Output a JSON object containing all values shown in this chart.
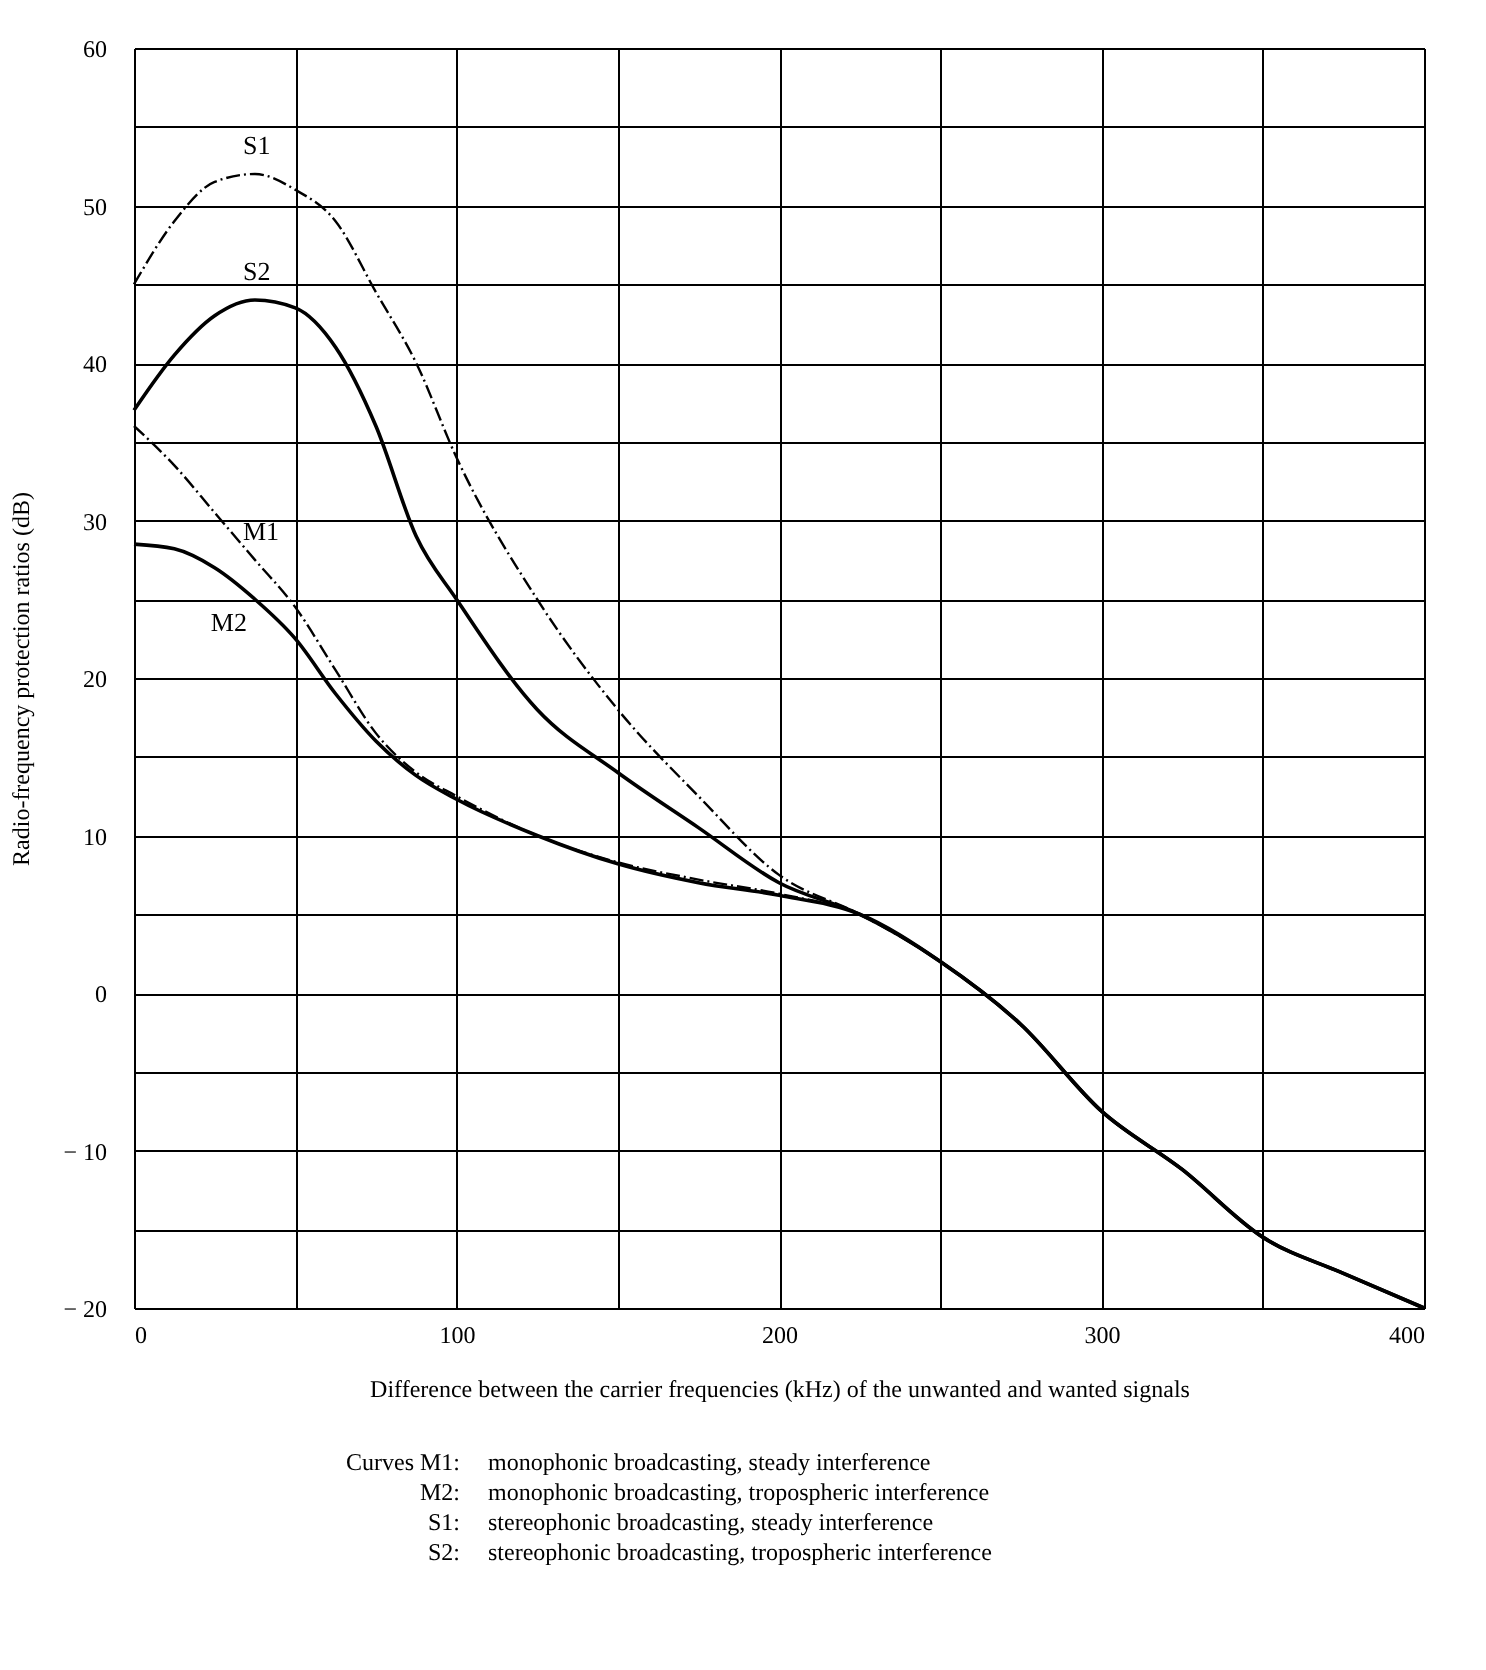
{
  "chart_data": {
    "type": "line",
    "xlabel": "Difference between the carrier frequencies (kHz) of the unwanted and wanted signals",
    "ylabel": "Radio-frequency protection ratios (dB)",
    "x": [
      0,
      12.5,
      25,
      37.5,
      50,
      62.5,
      75,
      87.5,
      100,
      125,
      150,
      175,
      200,
      225,
      250,
      275,
      300,
      325,
      350,
      375,
      400
    ],
    "series": [
      {
        "name": "S1",
        "color": "#000000",
        "line_style": "dashed",
        "values": [
          45,
          49,
          51.5,
          52,
          51,
          49,
          44.5,
          40,
          34,
          25,
          18,
          12.5,
          7.5,
          5,
          2,
          -2,
          -7.5,
          -11.2,
          -15.5,
          -17.8,
          -20
        ]
      },
      {
        "name": "S2",
        "color": "#000000",
        "line_style": "solid",
        "values": [
          37,
          40.5,
          43,
          44,
          43.5,
          41,
          36,
          29,
          25,
          18,
          14,
          10.5,
          7,
          5,
          2,
          -2,
          -7.5,
          -11.2,
          -15.5,
          -17.8,
          -20
        ]
      },
      {
        "name": "M1",
        "color": "#000000",
        "line_style": "dashed",
        "values": [
          36,
          33.5,
          30.5,
          27.5,
          24.5,
          20.5,
          16.5,
          14,
          12.5,
          10,
          8.3,
          7.2,
          6.3,
          5,
          2,
          -2,
          -7.5,
          -11.2,
          -15.5,
          -17.8,
          -20
        ]
      },
      {
        "name": "M2",
        "color": "#000000",
        "line_style": "solid",
        "values": [
          28.5,
          28.2,
          27,
          25,
          22.5,
          19,
          16,
          13.8,
          12.3,
          10,
          8.2,
          7,
          6.2,
          5,
          2,
          -2,
          -7.5,
          -11.2,
          -15.5,
          -17.8,
          -20
        ]
      }
    ],
    "annotations": [
      "Curves M1:\tmonophonic broadcasting, steady interference",
      "M2:\tmonophonic broadcasting, tropospheric interference",
      "S1:\tstereophonic broadcasting, steady interference",
      "S2:\tstereophonic broadcasting, tropospheric interference"
    ],
    "xlim": [
      0,
      400
    ],
    "ylim": [
      -20,
      60
    ],
    "xticks": [
      0,
      {
        "value": 50,
        "label": null
      },
      100,
      {
        "value": 150,
        "label": null
      },
      200,
      {
        "value": 250,
        "label": null
      },
      300,
      {
        "value": 350,
        "label": null
      },
      400
    ],
    "yticks": [
      {
        "value": -20,
        "label": "− 20"
      },
      {
        "value": -15,
        "label": null
      },
      {
        "value": -10,
        "label": "− 10"
      },
      {
        "value": -5,
        "label": null
      },
      0,
      {
        "value": 5,
        "label": null
      },
      10,
      {
        "value": 15,
        "label": null
      },
      20,
      {
        "value": 25,
        "label": null
      },
      30,
      {
        "value": 35,
        "label": null
      },
      40,
      {
        "value": 45,
        "label": null
      },
      50,
      {
        "value": 55,
        "label": null
      },
      60
    ],
    "grid": true,
    "marker": "none"
  }
}
